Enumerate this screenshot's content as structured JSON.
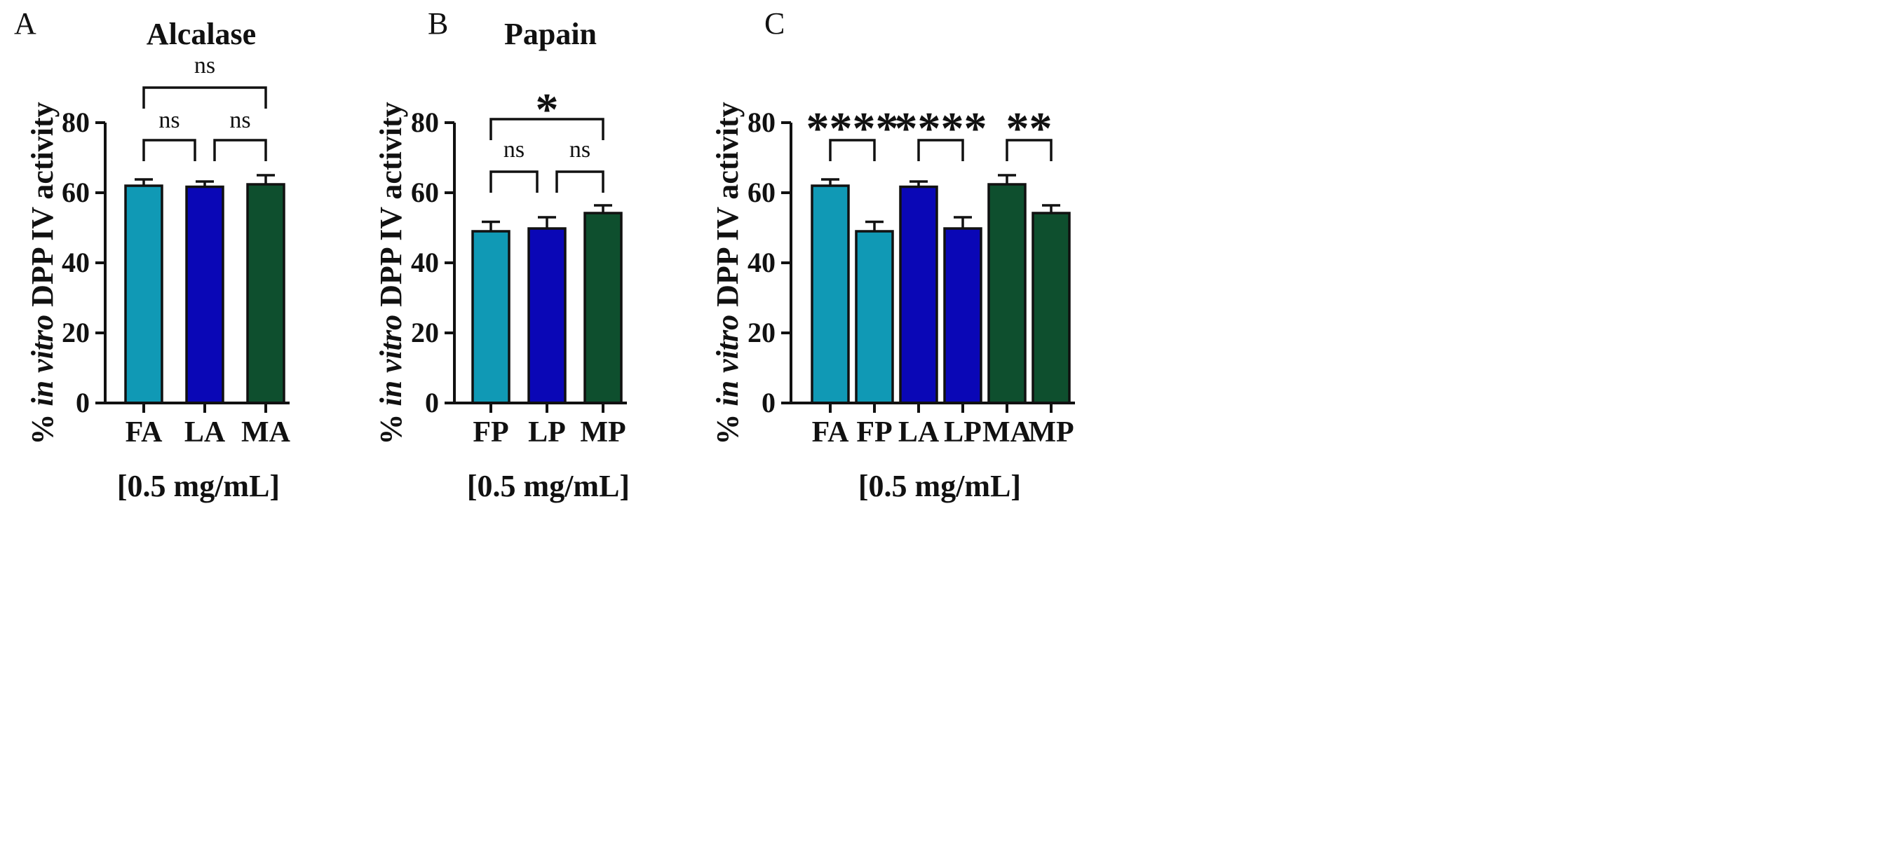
{
  "chart_data": [
    {
      "type": "bar",
      "panel": "A",
      "title": "Alcalase",
      "categories": [
        "FA",
        "LA",
        "MA"
      ],
      "values": [
        62,
        61.7,
        62.4
      ],
      "errors": [
        1.8,
        1.5,
        2.6
      ],
      "colors": [
        "#1099b5",
        "#0a07b6",
        "#0e4f2e"
      ],
      "xlabel": "[0.5 mg/mL]",
      "ylabel_prefix": "% ",
      "ylabel_italic": "in vitro",
      "ylabel_suffix": " DPP IV activity",
      "ylim": [
        0,
        80
      ],
      "yticks": [
        0,
        20,
        40,
        60,
        80
      ],
      "significance": [
        {
          "from": 0,
          "to": 1,
          "label": "ns",
          "level": 0
        },
        {
          "from": 1,
          "to": 2,
          "label": "ns",
          "level": 0
        },
        {
          "from": 0,
          "to": 2,
          "label": "ns",
          "level": 1
        }
      ]
    },
    {
      "type": "bar",
      "panel": "B",
      "title": "Papain",
      "categories": [
        "FP",
        "LP",
        "MP"
      ],
      "values": [
        49,
        49.8,
        54.2
      ],
      "errors": [
        2.7,
        3.2,
        2.2
      ],
      "colors": [
        "#1099b5",
        "#0a07b6",
        "#0e4f2e"
      ],
      "xlabel": "[0.5 mg/mL]",
      "ylabel_prefix": "% ",
      "ylabel_italic": "in vitro",
      "ylabel_suffix": " DPP IV activity",
      "ylim": [
        0,
        80
      ],
      "yticks": [
        0,
        20,
        40,
        60,
        80
      ],
      "significance": [
        {
          "from": 0,
          "to": 1,
          "label": "ns",
          "level": 0
        },
        {
          "from": 1,
          "to": 2,
          "label": "ns",
          "level": 0
        },
        {
          "from": 0,
          "to": 2,
          "label": "*",
          "level": 1
        }
      ]
    },
    {
      "type": "bar",
      "panel": "C",
      "title": "",
      "categories": [
        "FA",
        "FP",
        "LA",
        "LP",
        "MA",
        "MP"
      ],
      "values": [
        62,
        49,
        61.7,
        49.8,
        62.4,
        54.2
      ],
      "errors": [
        1.8,
        2.7,
        1.5,
        3.2,
        2.6,
        2.2
      ],
      "colors": [
        "#1099b5",
        "#1099b5",
        "#0a07b6",
        "#0a07b6",
        "#0e4f2e",
        "#0e4f2e"
      ],
      "xlabel": "[0.5 mg/mL]",
      "ylabel_prefix": "% ",
      "ylabel_italic": "in vitro",
      "ylabel_suffix": " DPP IV activity",
      "ylim": [
        0,
        80
      ],
      "yticks": [
        0,
        20,
        40,
        60,
        80
      ],
      "significance": [
        {
          "from": 0,
          "to": 1,
          "label": "****",
          "level": 0
        },
        {
          "from": 2,
          "to": 3,
          "label": "****",
          "level": 0
        },
        {
          "from": 4,
          "to": 5,
          "label": "**",
          "level": 0
        }
      ]
    }
  ]
}
